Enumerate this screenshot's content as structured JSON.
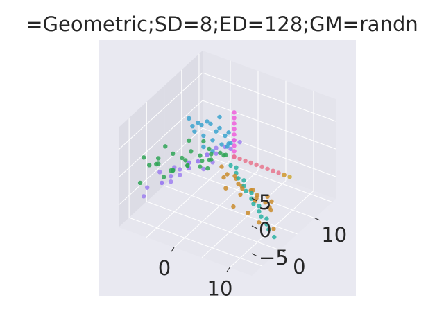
{
  "chart_data": {
    "type": "scatter",
    "projection": "3d",
    "title": "=Geometric;SD=8;ED=128;GM=randn",
    "x_ticks": [
      "0",
      "10"
    ],
    "y_ticks": [
      "0",
      "10"
    ],
    "z_ticks": [
      "−5",
      "0",
      "5"
    ],
    "grid": true,
    "legend": "none",
    "colors": {
      "pane_background": "#e9e9f1",
      "figure_background": "#ffffff",
      "grid": "#ffffff"
    },
    "series": [
      {
        "color": "#2fa456",
        "x": [
          -8,
          -6,
          -4,
          -2,
          0,
          1,
          2,
          -7,
          -5,
          -3,
          -1,
          0,
          2,
          3,
          -6,
          -4,
          -2,
          -1,
          1,
          -8,
          -5,
          -3,
          -2,
          0,
          1,
          -7,
          -4,
          -6,
          -3,
          -1
        ],
        "y": [
          -4,
          -3,
          -2,
          -1,
          0,
          1,
          2,
          -2,
          -1,
          0,
          1,
          2,
          3,
          2,
          -3,
          -2,
          -1,
          1,
          0,
          -5,
          -3,
          -1,
          0,
          2,
          1,
          -4,
          -2,
          -1,
          1,
          2
        ],
        "z": [
          2,
          1,
          0,
          1,
          2,
          3,
          3,
          0,
          -1,
          1,
          2,
          1,
          2,
          3,
          2,
          3,
          1,
          0,
          1,
          -2,
          -1,
          2,
          3,
          3,
          2,
          1,
          0,
          3,
          4,
          4
        ]
      },
      {
        "color": "#9d7ff0",
        "x": [
          -8,
          -6,
          -5,
          -4,
          -3,
          -2,
          -1,
          0,
          1,
          2,
          -7,
          -5,
          -3,
          -1,
          0,
          2,
          3,
          -6,
          -4,
          -2,
          0,
          -8,
          -5,
          -3,
          -1
        ],
        "y": [
          -3,
          -2,
          -1,
          0,
          1,
          2,
          3,
          4,
          5,
          6,
          -1,
          0,
          1,
          3,
          4,
          5,
          6,
          -2,
          0,
          2,
          3,
          -4,
          -1,
          1,
          2
        ],
        "z": [
          -4,
          -3,
          -2,
          -1,
          0,
          0,
          1,
          2,
          2,
          3,
          -2,
          -1,
          0,
          1,
          1,
          2,
          3,
          -3,
          -2,
          0,
          0,
          -5,
          -3,
          -1,
          -1
        ]
      },
      {
        "color": "#3ba3cf",
        "x": [
          -3,
          -2,
          -2,
          -1,
          -1,
          0,
          0,
          1,
          1,
          2,
          -2,
          -1,
          0,
          1,
          -3,
          -1,
          0,
          1,
          2,
          0
        ],
        "y": [
          1,
          2,
          3,
          2,
          4,
          3,
          5,
          4,
          6,
          5,
          1,
          3,
          4,
          5,
          2,
          2,
          3,
          6,
          4,
          5
        ],
        "z": [
          8,
          7,
          6,
          5,
          6,
          4,
          5,
          3,
          4,
          3,
          6,
          7,
          5,
          4,
          6,
          3,
          2,
          2,
          3,
          7
        ]
      },
      {
        "color": "#ee5fdc",
        "x": [
          2,
          2,
          2,
          2,
          2,
          2,
          2,
          2,
          2
        ],
        "y": [
          6,
          6,
          6,
          6,
          6,
          6,
          6,
          6,
          6
        ],
        "z": [
          0,
          1,
          2,
          3,
          4,
          5,
          6,
          7,
          8
        ]
      },
      {
        "color": "#e8768d",
        "x": [
          2,
          3,
          4,
          5,
          6,
          7,
          8,
          9,
          10,
          11
        ],
        "y": [
          6,
          6,
          6,
          6,
          6,
          6,
          6,
          6,
          6,
          6
        ],
        "z": [
          0,
          0,
          0,
          0,
          0,
          0,
          0,
          0,
          0,
          0
        ]
      },
      {
        "color": "#cfa93a",
        "x": [
          11,
          12
        ],
        "y": [
          6,
          6
        ],
        "z": [
          0,
          0
        ]
      },
      {
        "color": "#c98b2c",
        "x": [
          1,
          2,
          3,
          4,
          5,
          6,
          7,
          8,
          2,
          4,
          6,
          8,
          3,
          5,
          7,
          9,
          4,
          6,
          8,
          10,
          5,
          7,
          9,
          11
        ],
        "y": [
          4,
          4,
          5,
          5,
          6,
          6,
          7,
          7,
          3,
          4,
          5,
          6,
          2,
          3,
          4,
          5,
          3,
          2,
          3,
          4,
          1,
          2,
          2,
          3
        ],
        "z": [
          -1,
          -2,
          -3,
          -4,
          -5,
          -6,
          -7,
          -8,
          -2,
          -3,
          -4,
          -5,
          -3,
          -4,
          -5,
          -6,
          -1,
          -2,
          -3,
          -4,
          -5,
          -6,
          -7,
          -8
        ]
      },
      {
        "color": "#2ab0a2",
        "x": [
          2,
          3,
          4,
          5,
          6,
          7,
          8,
          9,
          10,
          11,
          12,
          13,
          3,
          5,
          7,
          9,
          11
        ],
        "y": [
          5,
          5,
          4,
          4,
          3,
          3,
          2,
          2,
          1,
          1,
          0,
          0,
          5,
          4,
          3,
          2,
          1
        ],
        "z": [
          -1,
          -2,
          -2,
          -3,
          -3,
          -4,
          -4,
          -5,
          -5,
          -6,
          -6,
          -7,
          -1,
          -2,
          -3,
          -4,
          -5
        ]
      }
    ]
  }
}
